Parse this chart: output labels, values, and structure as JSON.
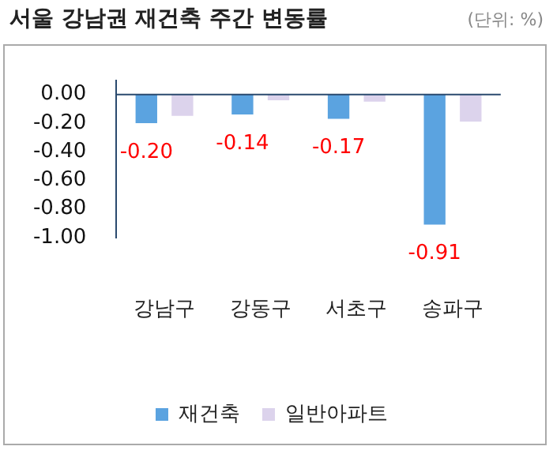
{
  "chart_data": {
    "type": "bar",
    "title": "서울 강남권 재건축 주간 변동률",
    "subtitle": "(단위: %)",
    "categories": [
      "강남구",
      "강동구",
      "서초구",
      "송파구"
    ],
    "series": [
      {
        "name": "재건축",
        "color": "#5ba3e0",
        "values": [
          -0.2,
          -0.14,
          -0.17,
          -0.91
        ],
        "value_labels": [
          "-0.20",
          "-0.14",
          "-0.17",
          "-0.91"
        ]
      },
      {
        "name": "일반아파트",
        "color": "#dcd3ec",
        "values": [
          -0.15,
          -0.04,
          -0.05,
          -0.19
        ]
      }
    ],
    "ylim": [
      -1.0,
      0.1
    ],
    "yticks": [
      {
        "value": 0,
        "label": "0.00"
      },
      {
        "value": -0.2,
        "label": "-0.20"
      },
      {
        "value": -0.4,
        "label": "-0.40"
      },
      {
        "value": -0.6,
        "label": "-0.60"
      },
      {
        "value": -0.8,
        "label": "-0.80"
      },
      {
        "value": -1.0,
        "label": "-1.00"
      }
    ],
    "ref_lines": [
      {
        "axis": "y",
        "value": 0,
        "color": "#2a4a6e"
      }
    ],
    "grid": false,
    "legend": "bottom"
  }
}
